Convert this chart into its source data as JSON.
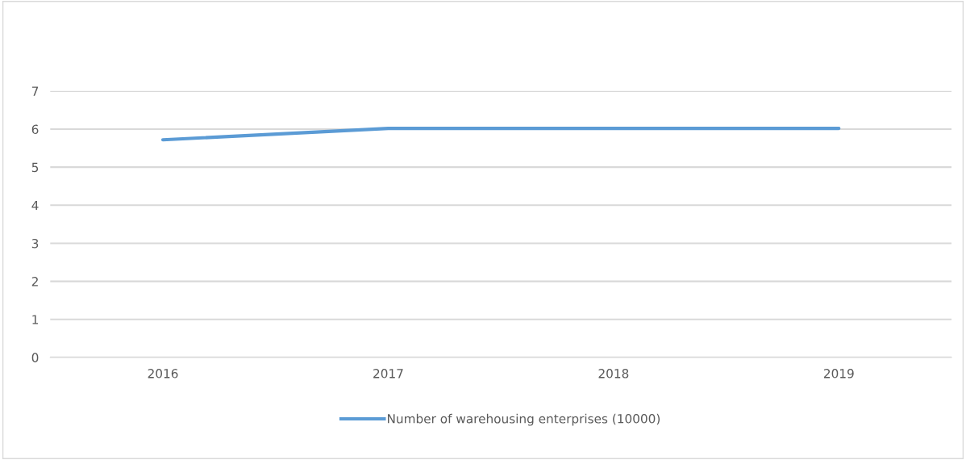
{
  "chart_data": {
    "type": "line",
    "categories": [
      "2016",
      "2017",
      "2018",
      "2019"
    ],
    "series": [
      {
        "name": "Number of warehousing enterprises (10000)",
        "color": "#5b9bd5",
        "values": [
          5.72,
          6.02,
          6.02,
          6.02
        ]
      }
    ],
    "ylim": [
      0,
      7
    ],
    "yticks": [
      0,
      1,
      2,
      3,
      4,
      5,
      6,
      7
    ],
    "grid": "y",
    "legend": "bottom",
    "marker": "none",
    "line_style": "solid"
  }
}
